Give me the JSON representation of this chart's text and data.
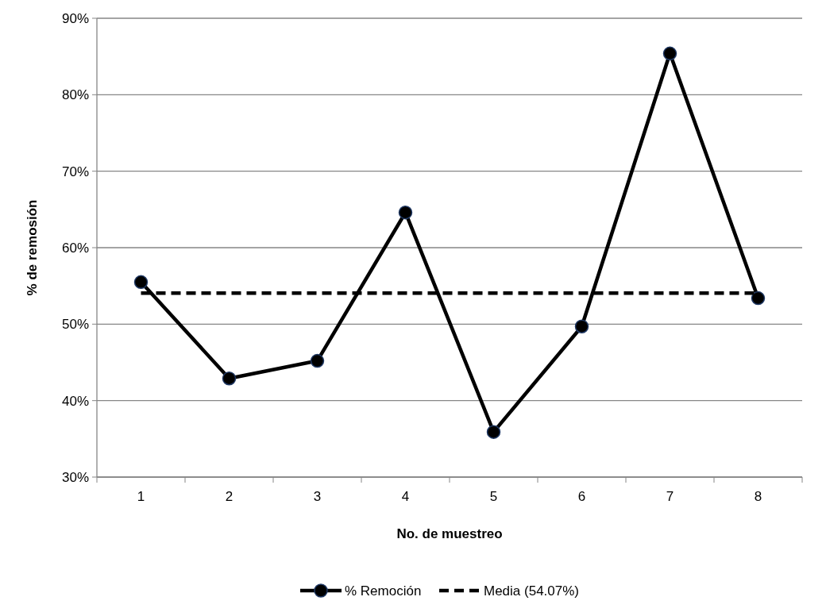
{
  "chart_data": {
    "type": "line",
    "xlabel": "No. de muestreo",
    "ylabel": "% de remosión",
    "categories": [
      "1",
      "2",
      "3",
      "4",
      "5",
      "6",
      "7",
      "8"
    ],
    "series": [
      {
        "name": "% Remoción",
        "color": "#000000",
        "marker": "circle",
        "line_style": "solid",
        "values": [
          55.5,
          42.9,
          45.2,
          64.6,
          35.9,
          49.7,
          85.4,
          53.4
        ]
      },
      {
        "name": "Media (54.07%)",
        "color": "#000000",
        "marker": "none",
        "line_style": "dashed",
        "values": [
          54.07,
          54.07,
          54.07,
          54.07,
          54.07,
          54.07,
          54.07,
          54.07
        ]
      }
    ],
    "ylim": [
      30,
      90
    ],
    "yticks": [
      {
        "value": 30,
        "label": "30%"
      },
      {
        "value": 40,
        "label": "40%"
      },
      {
        "value": 50,
        "label": "50%"
      },
      {
        "value": 60,
        "label": "60%"
      },
      {
        "value": 70,
        "label": "70%"
      },
      {
        "value": 80,
        "label": "80%"
      },
      {
        "value": 90,
        "label": "90%"
      }
    ],
    "grid": "y",
    "legend": "bottom"
  }
}
